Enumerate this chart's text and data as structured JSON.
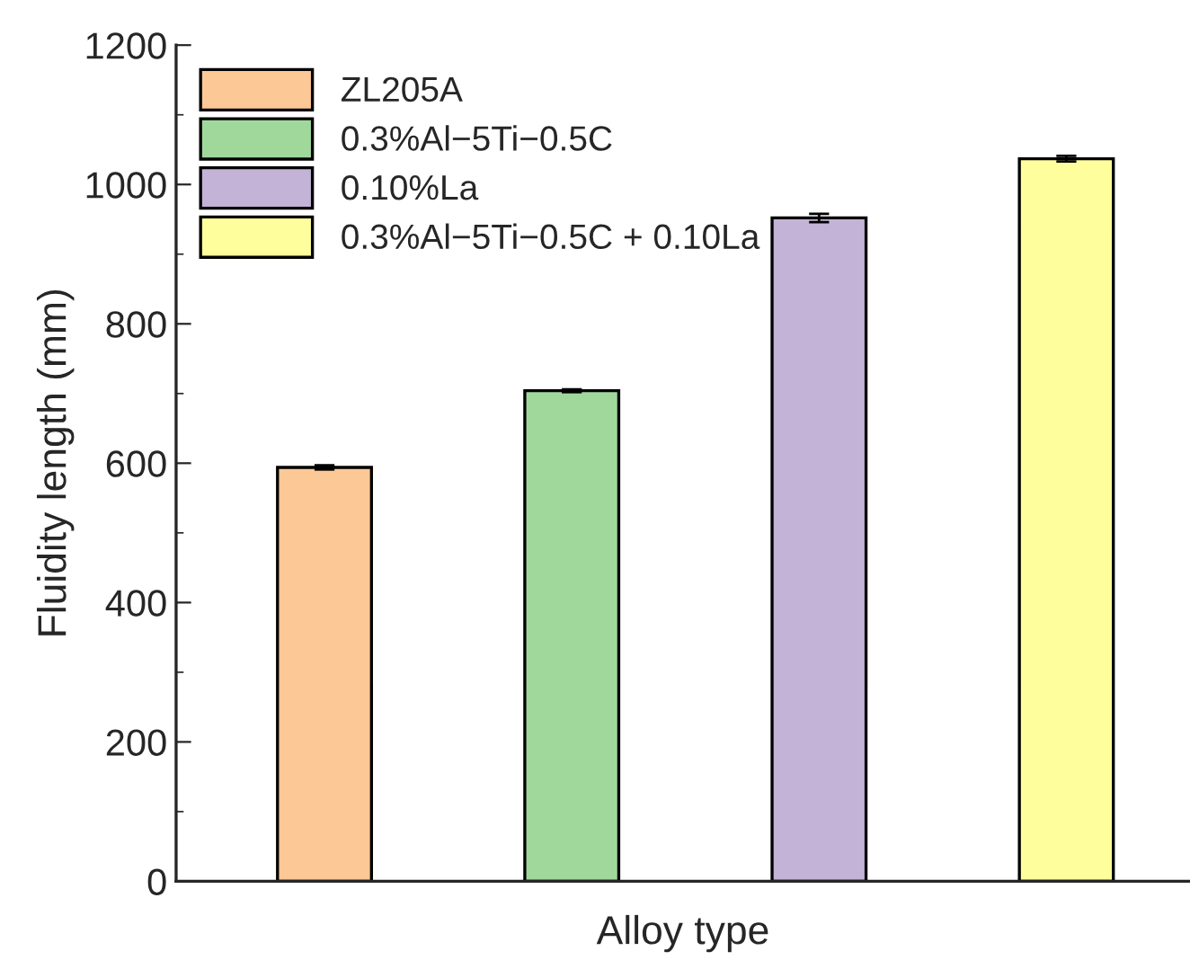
{
  "chart_data": {
    "type": "bar",
    "xlabel": "Alloy type",
    "ylabel": "Fluidity length (mm)",
    "categories": [
      null,
      null,
      null,
      null
    ],
    "series": [
      {
        "name": "ZL205A",
        "color": "#fbc896",
        "values": [
          594,
          null,
          null,
          null
        ],
        "errors": [
          3,
          null,
          null,
          null
        ]
      },
      {
        "name": "0.3%Al−5Ti−0.5C",
        "color": "#a0d89c",
        "values": [
          null,
          704,
          null,
          null
        ],
        "errors": [
          null,
          2,
          null,
          null
        ]
      },
      {
        "name": "0.10%La",
        "color": "#c3b3d6",
        "values": [
          null,
          null,
          952,
          null
        ],
        "errors": [
          null,
          null,
          6,
          null
        ]
      },
      {
        "name": "0.3%Al−5Ti−0.5C + 0.10La",
        "color": "#fefe9c",
        "values": [
          null,
          null,
          null,
          1037
        ],
        "errors": [
          null,
          null,
          null,
          4
        ]
      }
    ],
    "ylim": [
      0,
      1200
    ],
    "yticks": [
      0,
      200,
      400,
      600,
      800,
      1000,
      1200
    ],
    "grid": false,
    "legend": "top left"
  }
}
